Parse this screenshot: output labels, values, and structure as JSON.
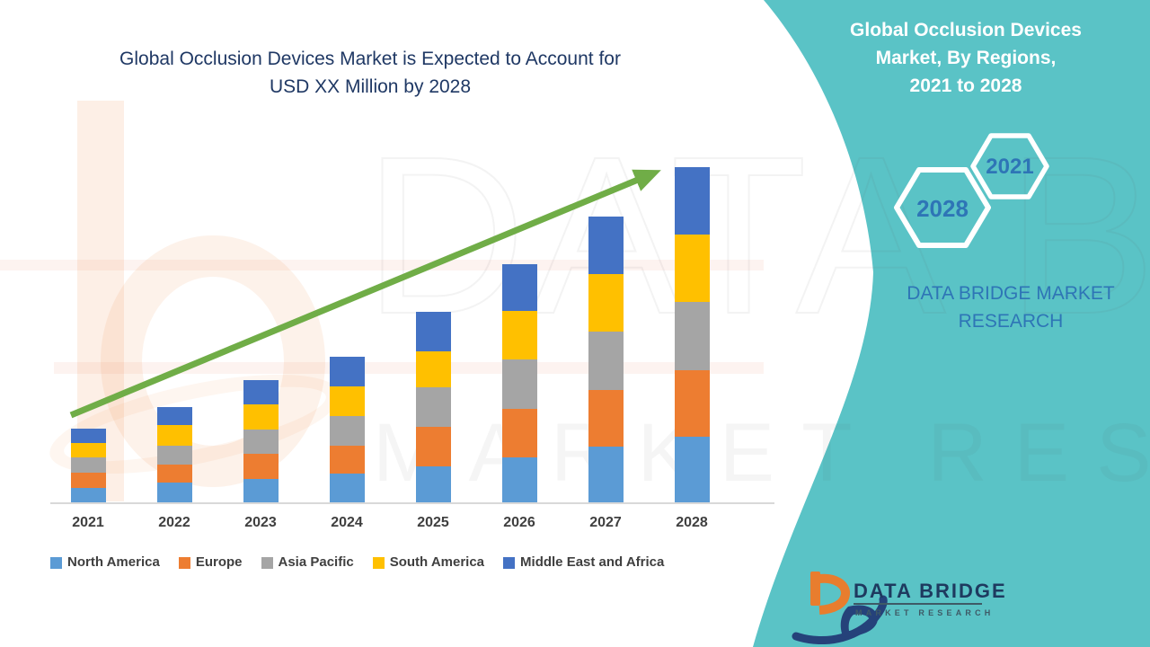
{
  "left_panel": {
    "title_line1": "Global Occlusion Devices Market is Expected to Account for",
    "title_line2": "USD XX Million by 2028",
    "title_color": "#1F3864"
  },
  "chart_data": {
    "type": "bar",
    "stacked": true,
    "title": "Global Occlusion Devices Market is Expected to Account for USD XX Million by 2028",
    "categories": [
      "2021",
      "2022",
      "2023",
      "2024",
      "2025",
      "2026",
      "2027",
      "2028"
    ],
    "series": [
      {
        "name": "North America",
        "color": "#5B9BD5",
        "values": [
          17,
          23,
          27,
          33,
          41,
          51,
          63,
          74
        ]
      },
      {
        "name": "Europe",
        "color": "#ED7D31",
        "values": [
          17,
          20,
          28,
          31,
          44,
          54,
          63,
          74
        ]
      },
      {
        "name": "Asia Pacific",
        "color": "#A5A5A5",
        "values": [
          17,
          21,
          27,
          33,
          44,
          55,
          65,
          76
        ]
      },
      {
        "name": "South America",
        "color": "#FFC000",
        "values": [
          16,
          23,
          28,
          33,
          40,
          54,
          64,
          75
        ]
      },
      {
        "name": "Middle East and Africa",
        "color": "#4472C4",
        "values": [
          16,
          20,
          27,
          33,
          44,
          52,
          64,
          75
        ]
      }
    ],
    "xlabel": "",
    "ylabel": "",
    "units": "relative height units (numeric USD values are not displayed, shown as XX)",
    "value_axis_visible": false,
    "grid": false,
    "legend_position": "bottom",
    "axis_line_color": "#D9D9D9",
    "label_color": "#3F3F3F",
    "trend_arrow": {
      "color": "#70AD47",
      "from": "2021",
      "to": "2028",
      "direction": "up"
    }
  },
  "right_panel": {
    "background_color": "#5AC3C6",
    "title_lines": [
      "Global Occlusion Devices",
      "Market, By Regions,",
      "2021 to 2028"
    ],
    "title_color": "#FFFFFF",
    "hexagons": [
      {
        "label": "2028"
      },
      {
        "label": "2021"
      }
    ],
    "hexagon_outline_color": "#FFFFFF",
    "hexagon_label_color": "#2E75B6",
    "brand_line1": "DATA BRIDGE MARKET",
    "brand_line2": "RESEARCH",
    "brand_color": "#2E75B6"
  },
  "footer_logo": {
    "title": "DATA BRIDGE",
    "subtitle": "MARKET RESEARCH",
    "title_color": "#1E3A5F",
    "subtitle_color": "#3E5A66",
    "underline_color": "#3E5A66",
    "mark_orange": "#E87D2E",
    "mark_navy": "#25427A"
  },
  "watermark": {
    "primary": "DATA BRIDGE",
    "secondary": "MARKET RESEARCH"
  }
}
